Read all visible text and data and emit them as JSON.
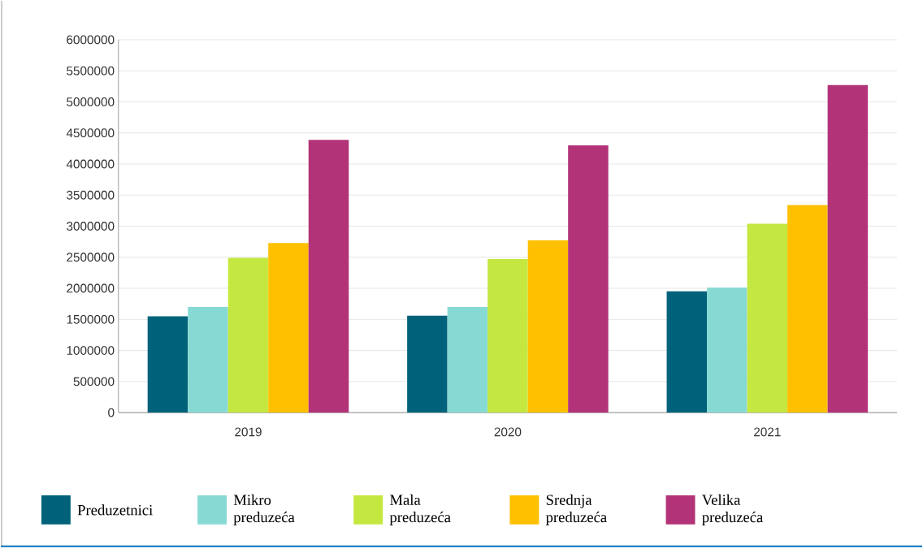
{
  "chart_data": {
    "type": "bar",
    "categories": [
      "2019",
      "2020",
      "2021"
    ],
    "series": [
      {
        "name": "Preduzetnici",
        "color": "#00627a",
        "values": [
          1550000,
          1560000,
          1950000
        ]
      },
      {
        "name": "Mikro preduzeća",
        "color": "#87d9d4",
        "values": [
          1700000,
          1700000,
          2010000
        ]
      },
      {
        "name": "Mala preduzeća",
        "color": "#c4e840",
        "values": [
          2490000,
          2470000,
          3040000
        ]
      },
      {
        "name": "Srednja preduzeća",
        "color": "#ffc000",
        "values": [
          2730000,
          2770000,
          3340000
        ]
      },
      {
        "name": "Velika preduzeća",
        "color": "#b33378",
        "values": [
          4390000,
          4300000,
          5270000
        ]
      }
    ],
    "ylim": [
      0,
      6000000
    ],
    "yticks": [
      0,
      500000,
      1000000,
      1500000,
      2000000,
      2500000,
      3000000,
      3500000,
      4000000,
      4500000,
      5000000,
      5500000,
      6000000
    ],
    "grid": "y",
    "legend": "bottom"
  }
}
